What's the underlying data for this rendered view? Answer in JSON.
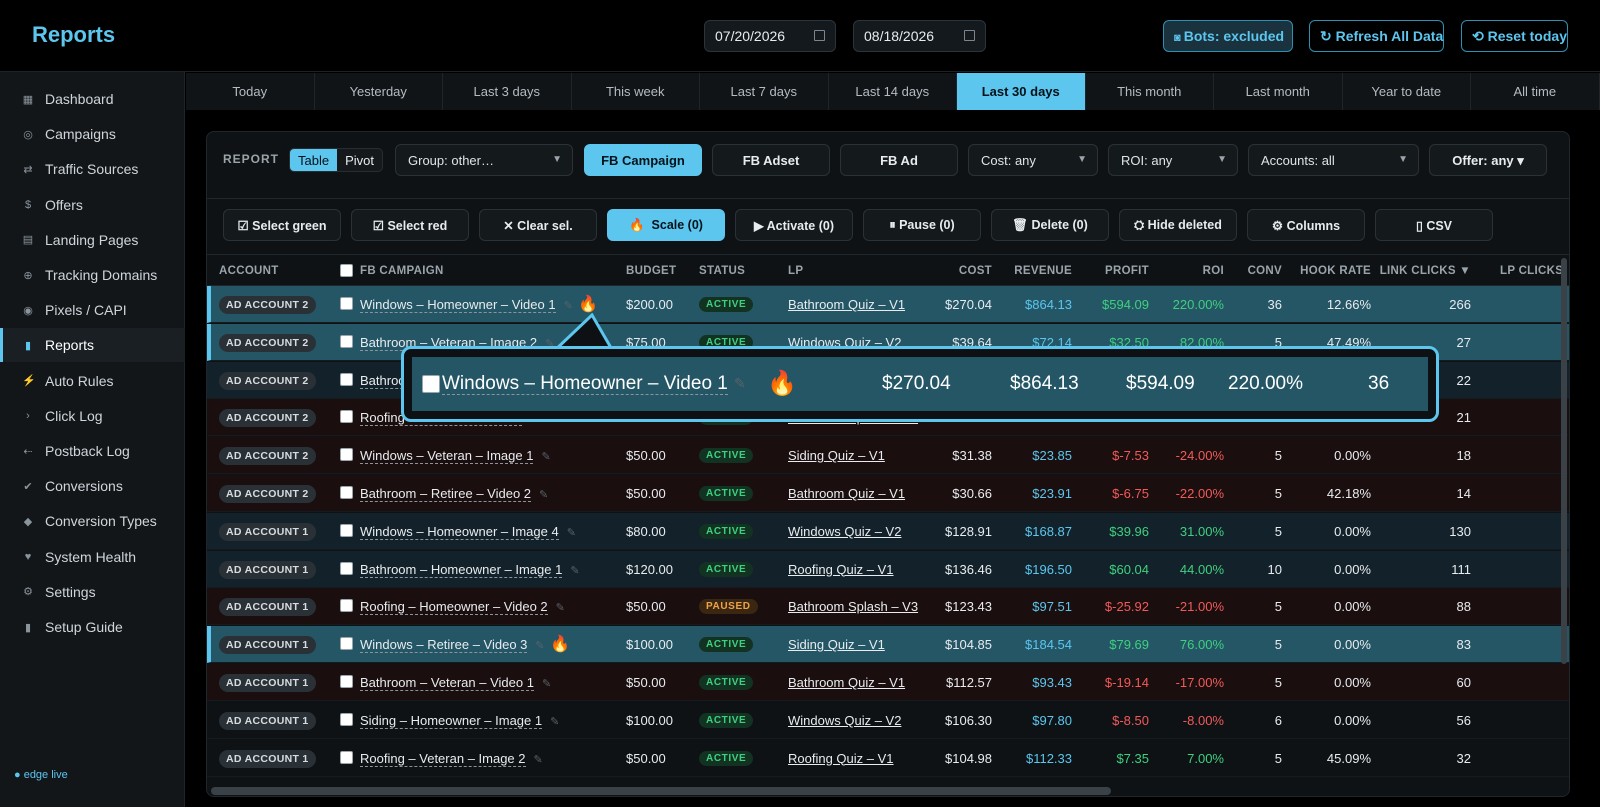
{
  "app": {
    "title": "Reports",
    "footer": "● edge live"
  },
  "header": {
    "date_from": "07/20/2026",
    "date_to": "08/18/2026",
    "bots_label": "Bots: excluded",
    "refresh_label": "↻ Refresh All Data",
    "reset_label": "⟲ Reset today"
  },
  "sidebar": {
    "items": [
      {
        "label": "Dashboard",
        "icon": "▦"
      },
      {
        "label": "Campaigns",
        "icon": "◎"
      },
      {
        "label": "Traffic Sources",
        "icon": "⇄"
      },
      {
        "label": "Offers",
        "icon": "$"
      },
      {
        "label": "Landing Pages",
        "icon": "▤"
      },
      {
        "label": "Tracking Domains",
        "icon": "⊕"
      },
      {
        "label": "Pixels / CAPI",
        "icon": "◉"
      },
      {
        "label": "Reports",
        "icon": "▮"
      },
      {
        "label": "Auto Rules",
        "icon": "⚡"
      },
      {
        "label": "Click Log",
        "icon": "›"
      },
      {
        "label": "Postback Log",
        "icon": "⇠"
      },
      {
        "label": "Conversions",
        "icon": "✔"
      },
      {
        "label": "Conversion Types",
        "icon": "◆"
      },
      {
        "label": "System Health",
        "icon": "♥"
      },
      {
        "label": "Settings",
        "icon": "⚙"
      },
      {
        "label": "Setup Guide",
        "icon": "▮"
      }
    ]
  },
  "ranges": [
    "Today",
    "Yesterday",
    "Last 3 days",
    "This week",
    "Last 7 days",
    "Last 14 days",
    "Last 30 days",
    "This month",
    "Last month",
    "Year to date",
    "All time"
  ],
  "filters": {
    "report_label": "REPORT",
    "view_table": "Table",
    "view_pivot": "Pivot",
    "group": "Group: other…",
    "fb_campaign": "FB Campaign",
    "fb_adset": "FB Adset",
    "fb_ad": "FB Ad",
    "cost": "Cost: any",
    "roi": "ROI: any",
    "accounts": "Accounts: all",
    "offer": "Offer: any ▾"
  },
  "actions": {
    "select_green": "☑ Select green",
    "select_red": "☑ Select red",
    "clear_sel": "✕ Clear sel.",
    "scale": "Scale (0)",
    "activate": "▶ Activate (0)",
    "pause": "⏸ Pause (0)",
    "delete": "🗑 Delete (0)",
    "hide_deleted": "⛭ Hide deleted",
    "columns": "⚙ Columns",
    "csv": "▯ CSV"
  },
  "table": {
    "headers": {
      "account": "ACCOUNT",
      "campaign": "FB CAMPAIGN",
      "budget": "BUDGET",
      "status": "STATUS",
      "lp": "LP",
      "cost": "COST",
      "revenue": "REVENUE",
      "profit": "PROFIT",
      "roi": "ROI",
      "conv": "CONV",
      "hook_rate": "HOOK RATE",
      "link_clicks": "LINK CLICKS ▼",
      "lp_clicks": "LP CLICKS"
    },
    "rows": [
      {
        "account": "AD ACCOUNT 2",
        "campaign": "Windows – Homeowner – Video 1",
        "budget": "$200.00",
        "status": "ACTIVE",
        "lp": "Bathroom Quiz – V1",
        "cost": "$270.04",
        "revenue": "$864.13",
        "profit": "$594.09",
        "roi": "220.00%",
        "conv": "36",
        "hook": "12.66%",
        "clicks": "266",
        "tone": "scale",
        "fire": "🔥"
      },
      {
        "account": "AD ACCOUNT 2",
        "campaign": "Bathroom – Veteran – Image 2",
        "budget": "$75.00",
        "status": "ACTIVE",
        "lp": "Windows Quiz – V2",
        "cost": "$39.64",
        "revenue": "$72.14",
        "profit": "$32.50",
        "roi": "82.00%",
        "conv": "5",
        "hook": "47.49%",
        "clicks": "27",
        "tone": "scale",
        "fire": ""
      },
      {
        "account": "AD ACCOUNT 2",
        "campaign": "Bathroom – Retiree – Image 1",
        "budget": "",
        "status": "ACTIVE",
        "lp": "",
        "cost": "",
        "revenue": "",
        "profit": "",
        "roi": "",
        "conv": "",
        "hook": "",
        "clicks": "22",
        "tone": "green",
        "fire": ""
      },
      {
        "account": "AD ACCOUNT 2",
        "campaign": "Roofing – Veteran – Video 1",
        "budget": "",
        "status": "ACTIVE",
        "lp": "Bathroom Splash – V3",
        "cost": "",
        "revenue": "",
        "profit": "",
        "roi": "",
        "conv": "",
        "hook": "",
        "clicks": "21",
        "tone": "red",
        "fire": ""
      },
      {
        "account": "AD ACCOUNT 2",
        "campaign": "Windows – Veteran – Image 1",
        "budget": "$50.00",
        "status": "ACTIVE",
        "lp": "Siding Quiz – V1",
        "cost": "$31.38",
        "revenue": "$23.85",
        "profit": "$-7.53",
        "roi": "-24.00%",
        "conv": "5",
        "hook": "0.00%",
        "clicks": "18",
        "tone": "red",
        "fire": ""
      },
      {
        "account": "AD ACCOUNT 2",
        "campaign": "Bathroom – Retiree – Video 2",
        "budget": "$50.00",
        "status": "ACTIVE",
        "lp": "Bathroom Quiz – V1",
        "cost": "$30.66",
        "revenue": "$23.91",
        "profit": "$-6.75",
        "roi": "-22.00%",
        "conv": "5",
        "hook": "42.18%",
        "clicks": "14",
        "tone": "red",
        "fire": ""
      },
      {
        "account": "AD ACCOUNT 1",
        "campaign": "Windows – Homeowner – Image 4",
        "budget": "$80.00",
        "status": "ACTIVE",
        "lp": "Windows Quiz – V2",
        "cost": "$128.91",
        "revenue": "$168.87",
        "profit": "$39.96",
        "roi": "31.00%",
        "conv": "5",
        "hook": "0.00%",
        "clicks": "130",
        "tone": "green",
        "fire": ""
      },
      {
        "account": "AD ACCOUNT 1",
        "campaign": "Bathroom – Homeowner – Image 1",
        "budget": "$120.00",
        "status": "ACTIVE",
        "lp": "Roofing Quiz – V1",
        "cost": "$136.46",
        "revenue": "$196.50",
        "profit": "$60.04",
        "roi": "44.00%",
        "conv": "10",
        "hook": "0.00%",
        "clicks": "111",
        "tone": "green",
        "fire": ""
      },
      {
        "account": "AD ACCOUNT 1",
        "campaign": "Roofing – Homeowner – Video 2",
        "budget": "$50.00",
        "status": "PAUSED",
        "lp": "Bathroom Splash – V3",
        "cost": "$123.43",
        "revenue": "$97.51",
        "profit": "$-25.92",
        "roi": "-21.00%",
        "conv": "5",
        "hook": "0.00%",
        "clicks": "88",
        "tone": "red",
        "fire": ""
      },
      {
        "account": "AD ACCOUNT 1",
        "campaign": "Windows – Retiree – Video 3",
        "budget": "$100.00",
        "status": "ACTIVE",
        "lp": "Siding Quiz – V1",
        "cost": "$104.85",
        "revenue": "$184.54",
        "profit": "$79.69",
        "roi": "76.00%",
        "conv": "5",
        "hook": "0.00%",
        "clicks": "83",
        "tone": "scale",
        "fire": "🔥"
      },
      {
        "account": "AD ACCOUNT 1",
        "campaign": "Bathroom – Veteran – Video 1",
        "budget": "$50.00",
        "status": "ACTIVE",
        "lp": "Bathroom Quiz – V1",
        "cost": "$112.57",
        "revenue": "$93.43",
        "profit": "$-19.14",
        "roi": "-17.00%",
        "conv": "5",
        "hook": "0.00%",
        "clicks": "60",
        "tone": "red",
        "fire": ""
      },
      {
        "account": "AD ACCOUNT 1",
        "campaign": "Siding – Homeowner – Image 1",
        "budget": "$100.00",
        "status": "ACTIVE",
        "lp": "Windows Quiz – V2",
        "cost": "$106.30",
        "revenue": "$97.80",
        "profit": "$-8.50",
        "roi": "-8.00%",
        "conv": "6",
        "hook": "0.00%",
        "clicks": "56",
        "tone": "plain",
        "fire": ""
      },
      {
        "account": "AD ACCOUNT 1",
        "campaign": "Roofing – Veteran – Image 2",
        "budget": "$50.00",
        "status": "ACTIVE",
        "lp": "Roofing Quiz – V1",
        "cost": "$104.98",
        "revenue": "$112.33",
        "profit": "$7.35",
        "roi": "7.00%",
        "conv": "5",
        "hook": "45.09%",
        "clicks": "32",
        "tone": "plain",
        "fire": ""
      }
    ]
  },
  "zoom": {
    "campaign": "Windows – Homeowner – Video 1",
    "cost": "$270.04",
    "revenue": "$864.13",
    "profit": "$594.09",
    "roi": "220.00%",
    "conv": "36",
    "fire": "🔥"
  },
  "colors": {
    "accent": "#5cc6ee",
    "positive": "#3fd07f",
    "negative": "#f25a5a"
  }
}
